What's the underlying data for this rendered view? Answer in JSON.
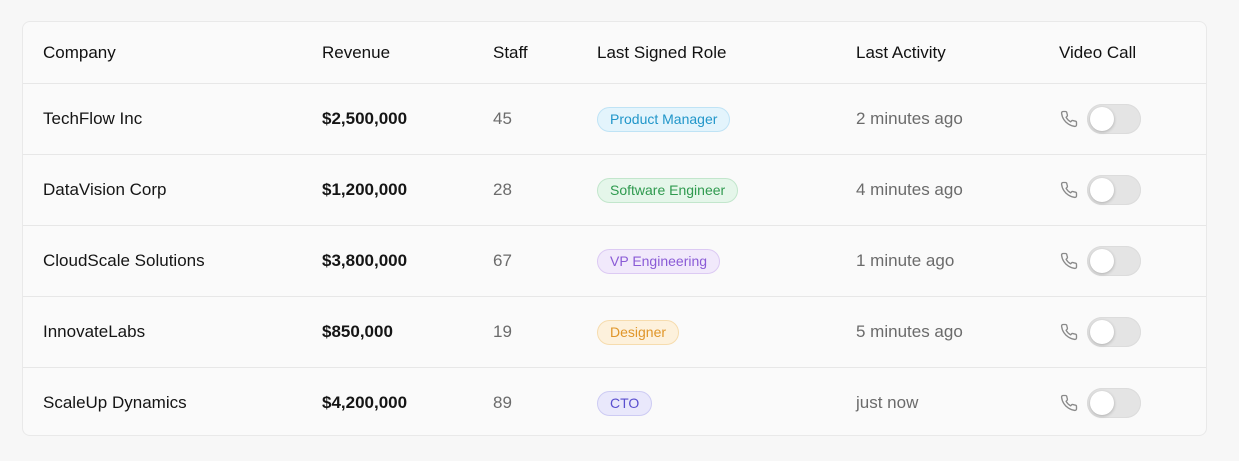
{
  "table": {
    "headers": {
      "company": "Company",
      "revenue": "Revenue",
      "staff": "Staff",
      "role": "Last Signed Role",
      "activity": "Last Activity",
      "video": "Video Call"
    },
    "rows": [
      {
        "company": "TechFlow Inc",
        "revenue": "$2,500,000",
        "staff": "45",
        "role": "Product Manager",
        "role_bg": "#e3f4fc",
        "role_border": "#bfe3f5",
        "role_color": "#2196c9",
        "activity": "2 minutes ago",
        "video_call_on": false
      },
      {
        "company": "DataVision Corp",
        "revenue": "$1,200,000",
        "staff": "28",
        "role": "Software Engineer",
        "role_bg": "#e5f6ea",
        "role_border": "#c2e6cc",
        "role_color": "#2f9a4f",
        "activity": "4 minutes ago",
        "video_call_on": false
      },
      {
        "company": "CloudScale Solutions",
        "revenue": "$3,800,000",
        "staff": "67",
        "role": "VP Engineering",
        "role_bg": "#f1e9fb",
        "role_border": "#dccaf3",
        "role_color": "#8a5bd6",
        "activity": "1 minute ago",
        "video_call_on": false
      },
      {
        "company": "InnovateLabs",
        "revenue": "$850,000",
        "staff": "19",
        "role": "Designer",
        "role_bg": "#fdf1dc",
        "role_border": "#f6dcae",
        "role_color": "#e0962a",
        "activity": "5 minutes ago",
        "video_call_on": false
      },
      {
        "company": "ScaleUp Dynamics",
        "revenue": "$4,200,000",
        "staff": "89",
        "role": "CTO",
        "role_bg": "#e9e8fb",
        "role_border": "#cdcbf3",
        "role_color": "#5a4fcf",
        "activity": "just now",
        "video_call_on": false
      }
    ]
  },
  "icons": {
    "video_call": "phone-icon"
  },
  "colors": {
    "toggle_off": "#e4e4e4",
    "icon": "#8a8a8a"
  }
}
